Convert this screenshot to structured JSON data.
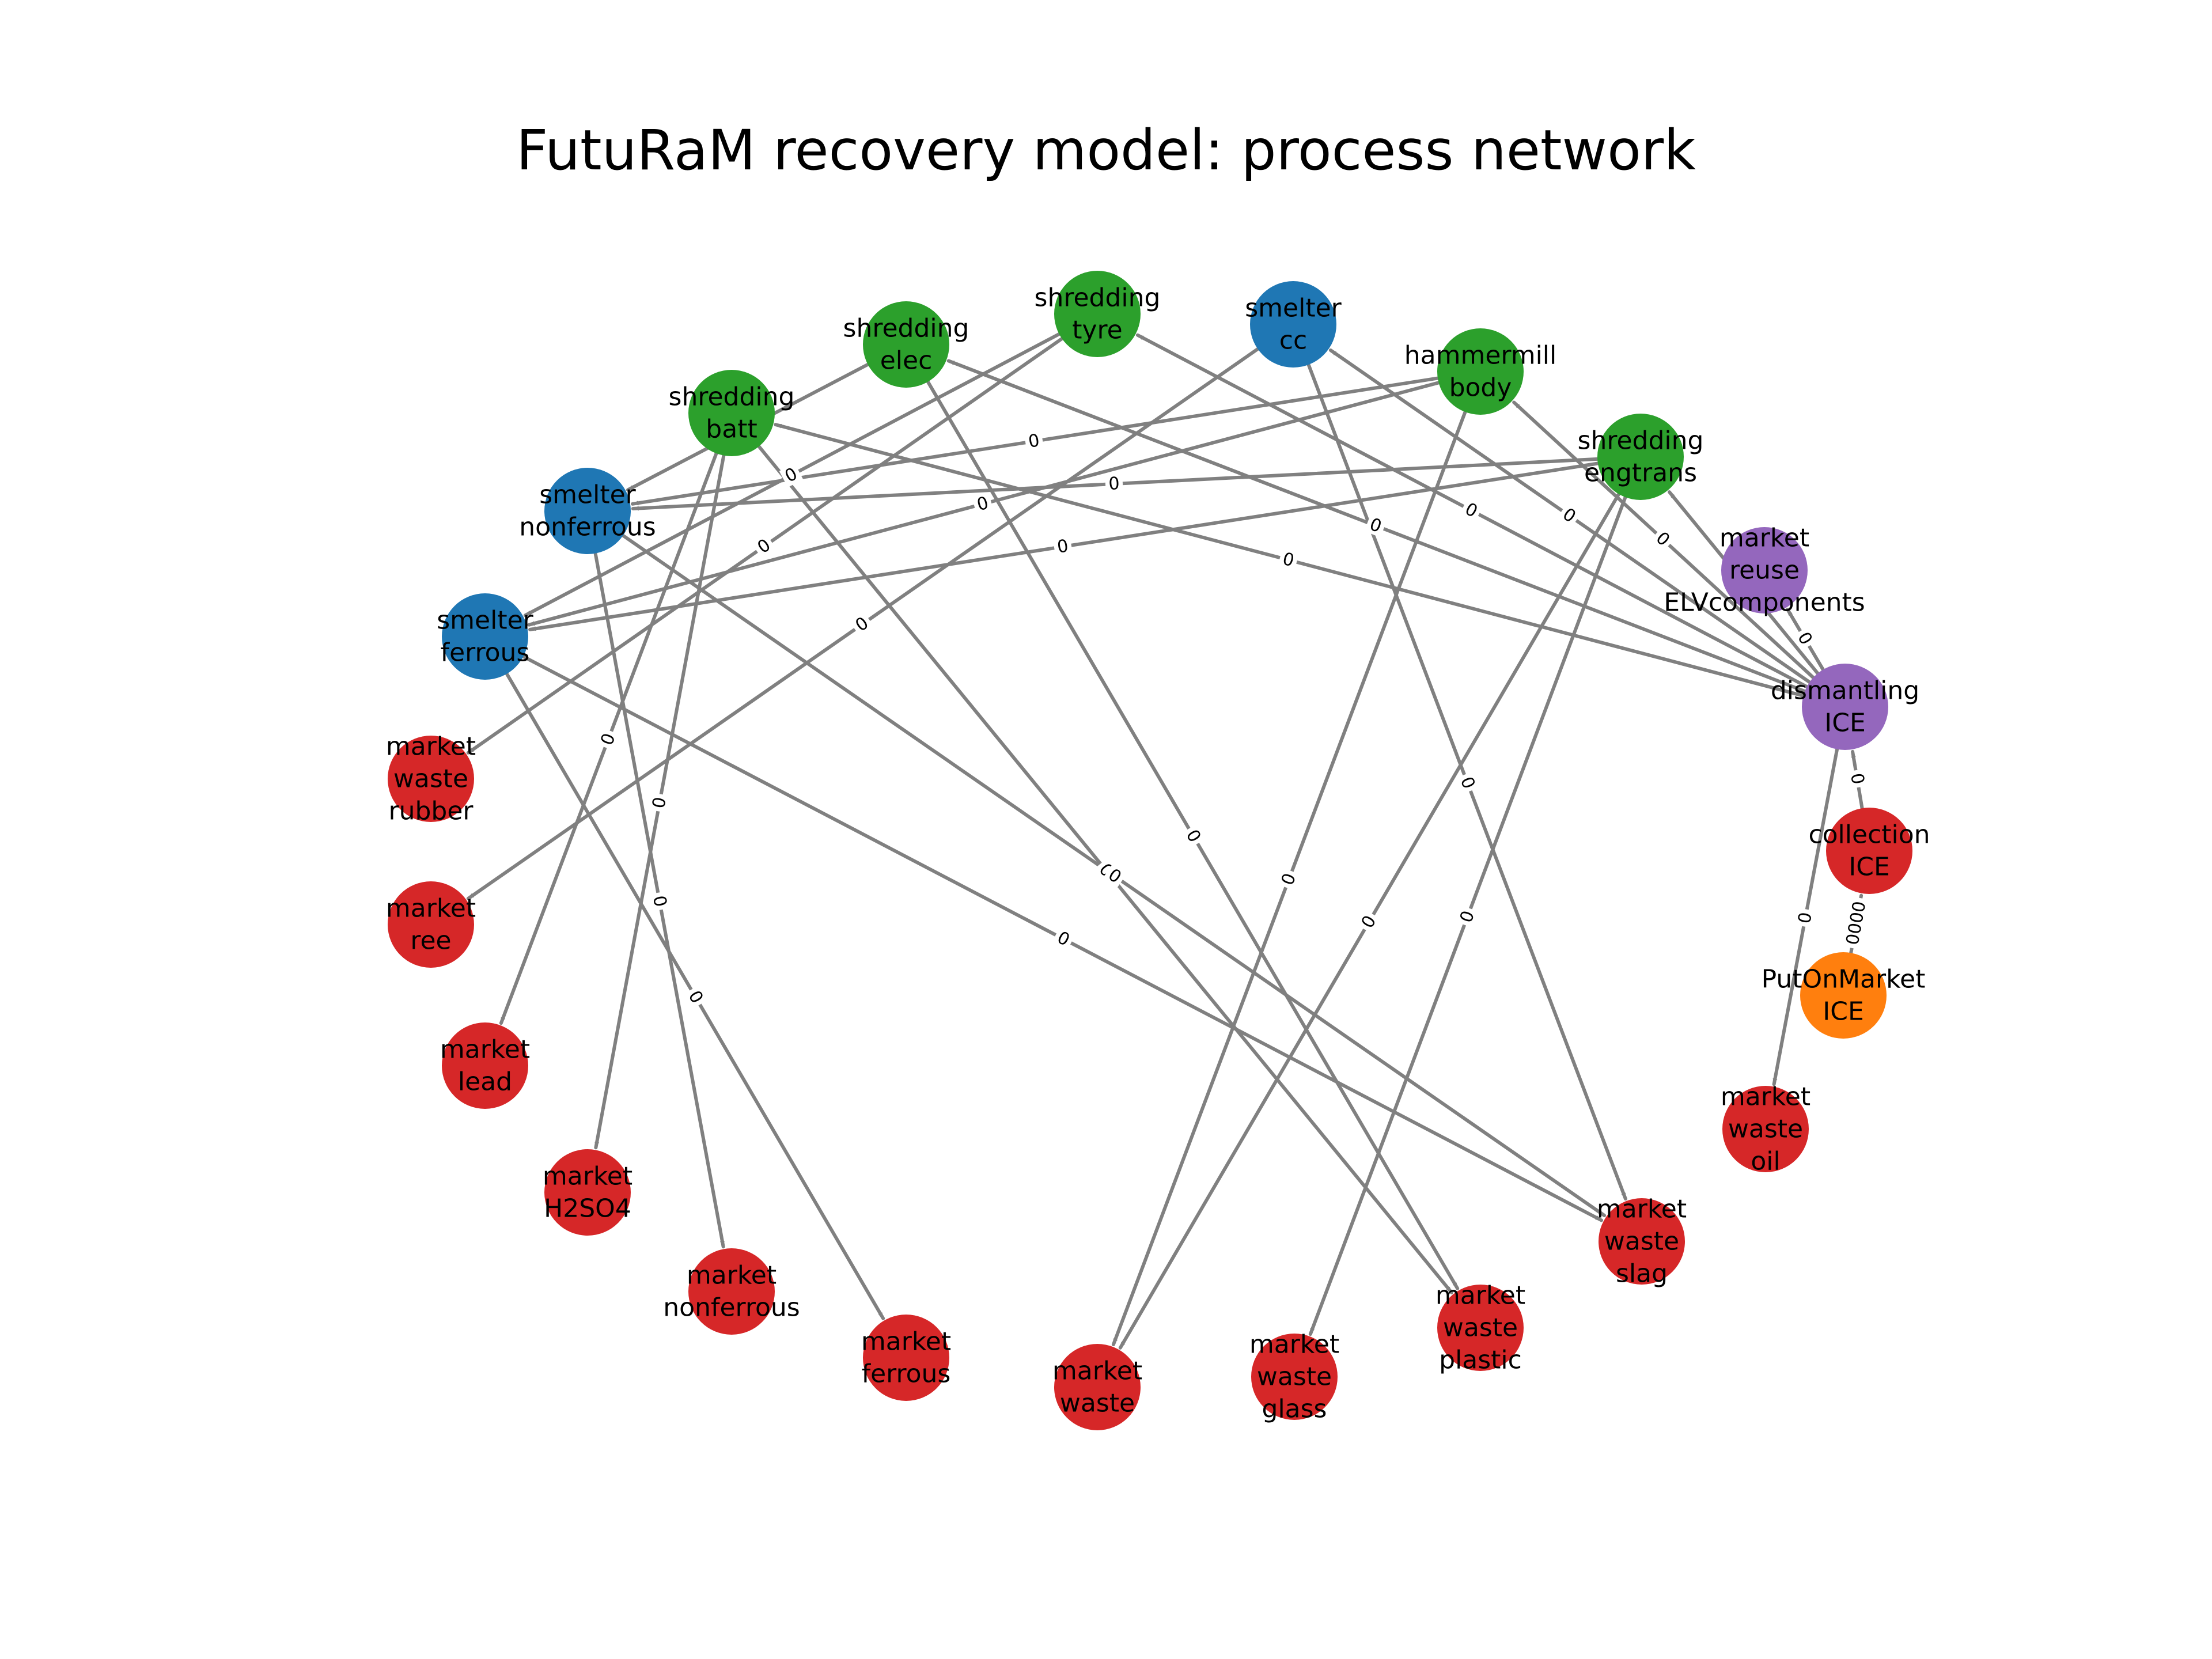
{
  "title": "FutuRaM recovery model: process network",
  "colors": {
    "edge": "#808080",
    "green": "#2ca02c",
    "blue": "#1f77b4",
    "purple": "#9467bd",
    "red": "#d62728",
    "orange": "#ff7f0e",
    "label": "#000000"
  },
  "nodes": [
    {
      "id": "shredding_tyre",
      "lines": [
        "shredding",
        "tyre"
      ],
      "color": "green"
    },
    {
      "id": "smelter_cc",
      "lines": [
        "smelter",
        "cc"
      ],
      "color": "blue"
    },
    {
      "id": "hammermill_body",
      "lines": [
        "hammermill",
        "body"
      ],
      "color": "green"
    },
    {
      "id": "shredding_engtrans",
      "lines": [
        "shredding",
        "engtrans"
      ],
      "color": "green"
    },
    {
      "id": "market_reuse_ELVcomponents",
      "lines": [
        "market",
        "reuse",
        "ELVcomponents"
      ],
      "color": "purple"
    },
    {
      "id": "dismantling_ICE",
      "lines": [
        "dismantling",
        "ICE"
      ],
      "color": "purple"
    },
    {
      "id": "collection_ICE",
      "lines": [
        "collection",
        "ICE"
      ],
      "color": "red"
    },
    {
      "id": "PutOnMarket_ICE",
      "lines": [
        "PutOnMarket",
        "ICE"
      ],
      "color": "orange"
    },
    {
      "id": "market_waste_oil",
      "lines": [
        "market",
        "waste",
        "oil"
      ],
      "color": "red"
    },
    {
      "id": "market_waste_slag",
      "lines": [
        "market",
        "waste",
        "slag"
      ],
      "color": "red"
    },
    {
      "id": "market_waste_plastic",
      "lines": [
        "market",
        "waste",
        "plastic"
      ],
      "color": "red"
    },
    {
      "id": "market_waste_glass",
      "lines": [
        "market",
        "waste",
        "glass"
      ],
      "color": "red"
    },
    {
      "id": "market_waste",
      "lines": [
        "market",
        "waste"
      ],
      "color": "red"
    },
    {
      "id": "market_ferrous",
      "lines": [
        "market",
        "ferrous"
      ],
      "color": "red"
    },
    {
      "id": "market_nonferrous",
      "lines": [
        "market",
        "nonferrous"
      ],
      "color": "red"
    },
    {
      "id": "market_H2SO4",
      "lines": [
        "market",
        "H2SO4"
      ],
      "color": "red"
    },
    {
      "id": "market_lead",
      "lines": [
        "market",
        "lead"
      ],
      "color": "red"
    },
    {
      "id": "market_ree",
      "lines": [
        "market",
        "ree"
      ],
      "color": "red"
    },
    {
      "id": "market_waste_rubber",
      "lines": [
        "market",
        "waste",
        "rubber"
      ],
      "color": "red"
    },
    {
      "id": "smelter_ferrous",
      "lines": [
        "smelter",
        "ferrous"
      ],
      "color": "blue"
    },
    {
      "id": "smelter_nonferrous",
      "lines": [
        "smelter",
        "nonferrous"
      ],
      "color": "blue"
    },
    {
      "id": "shredding_batt",
      "lines": [
        "shredding",
        "batt"
      ],
      "color": "green"
    },
    {
      "id": "shredding_elec",
      "lines": [
        "shredding",
        "elec"
      ],
      "color": "green"
    }
  ],
  "edges": [
    {
      "from": "PutOnMarket_ICE",
      "to": "collection_ICE",
      "label": "0000"
    },
    {
      "from": "collection_ICE",
      "to": "dismantling_ICE",
      "label": "0"
    },
    {
      "from": "dismantling_ICE",
      "to": "market_reuse_ELVcomponents",
      "label": "0"
    },
    {
      "from": "dismantling_ICE",
      "to": "shredding_engtrans",
      "label": "0"
    },
    {
      "from": "dismantling_ICE",
      "to": "hammermill_body",
      "label": "0"
    },
    {
      "from": "dismantling_ICE",
      "to": "smelter_cc",
      "label": "0"
    },
    {
      "from": "dismantling_ICE",
      "to": "shredding_tyre",
      "label": "0"
    },
    {
      "from": "dismantling_ICE",
      "to": "shredding_elec",
      "label": "0"
    },
    {
      "from": "dismantling_ICE",
      "to": "shredding_batt",
      "label": "0"
    },
    {
      "from": "dismantling_ICE",
      "to": "market_waste_oil",
      "label": "0"
    },
    {
      "from": "hammermill_body",
      "to": "smelter_nonferrous",
      "label": "0"
    },
    {
      "from": "hammermill_body",
      "to": "smelter_ferrous",
      "label": "0"
    },
    {
      "from": "hammermill_body",
      "to": "market_waste",
      "label": "0"
    },
    {
      "from": "shredding_engtrans",
      "to": "smelter_nonferrous",
      "label": "0"
    },
    {
      "from": "shredding_engtrans",
      "to": "smelter_ferrous",
      "label": "0"
    },
    {
      "from": "shredding_engtrans",
      "to": "market_waste",
      "label": "0"
    },
    {
      "from": "shredding_engtrans",
      "to": "market_waste_glass",
      "label": "0"
    },
    {
      "from": "shredding_tyre",
      "to": "smelter_ferrous",
      "label": "0"
    },
    {
      "from": "shredding_tyre",
      "to": "market_waste_rubber",
      "label": "0"
    },
    {
      "from": "shredding_elec",
      "to": "smelter_nonferrous",
      "label": "0"
    },
    {
      "from": "shredding_elec",
      "to": "market_waste_plastic",
      "label": "0"
    },
    {
      "from": "shredding_batt",
      "to": "market_lead",
      "label": "0"
    },
    {
      "from": "shredding_batt",
      "to": "market_H2SO4",
      "label": "0"
    },
    {
      "from": "shredding_batt",
      "to": "market_waste_plastic",
      "label": "0"
    },
    {
      "from": "smelter_cc",
      "to": "market_ree",
      "label": "0"
    },
    {
      "from": "smelter_cc",
      "to": "market_waste_slag",
      "label": "0"
    },
    {
      "from": "smelter_nonferrous",
      "to": "market_nonferrous",
      "label": "0"
    },
    {
      "from": "smelter_nonferrous",
      "to": "market_waste_slag",
      "label": "0"
    },
    {
      "from": "smelter_ferrous",
      "to": "market_ferrous",
      "label": "0"
    },
    {
      "from": "smelter_ferrous",
      "to": "market_waste_slag",
      "label": "0"
    }
  ]
}
